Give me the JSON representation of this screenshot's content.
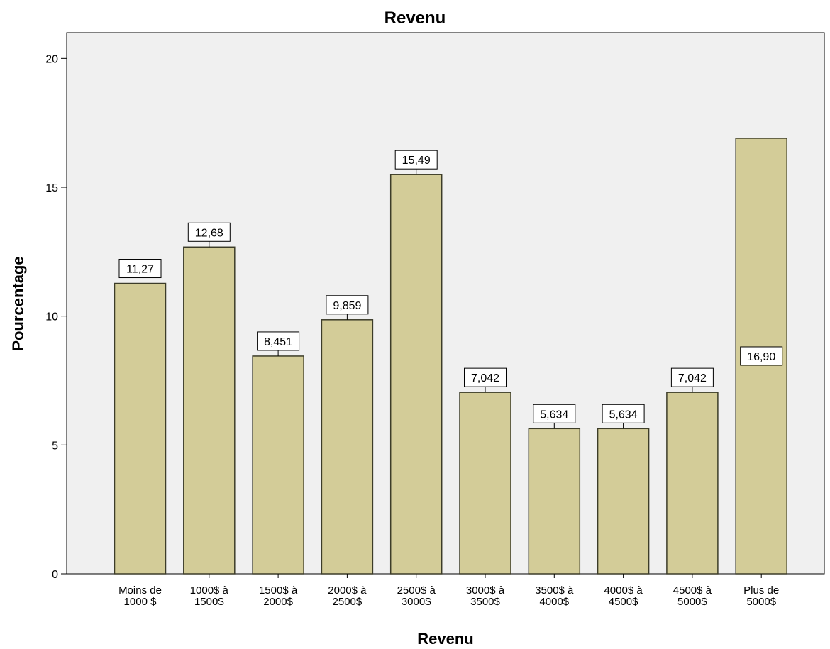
{
  "chart_data": {
    "type": "bar",
    "title": "Revenu",
    "xlabel": "Revenu",
    "ylabel": "Pourcentage",
    "ylim": [
      0,
      21
    ],
    "yticks": [
      0,
      5,
      10,
      15,
      20
    ],
    "grid": false,
    "categories": [
      [
        "Moins de",
        "1000 $"
      ],
      [
        "1000$ à",
        "1500$"
      ],
      [
        "1500$ à",
        "2000$"
      ],
      [
        "2000$ à",
        "2500$"
      ],
      [
        "2500$ à",
        "3000$"
      ],
      [
        "3000$ à",
        "3500$"
      ],
      [
        "3500$ à",
        "4000$"
      ],
      [
        "4000$ à",
        "4500$"
      ],
      [
        "4500$ à",
        "5000$"
      ],
      [
        "Plus de",
        "5000$"
      ]
    ],
    "values": [
      11.27,
      12.68,
      8.451,
      9.859,
      15.49,
      7.042,
      5.634,
      5.634,
      7.042,
      16.9
    ],
    "data_labels": [
      "11,27",
      "12,68",
      "8,451",
      "9,859",
      "15,49",
      "7,042",
      "5,634",
      "5,634",
      "7,042",
      "16,90"
    ],
    "colors": {
      "bar_fill": "#d3cc98",
      "bar_stroke": "#3c3c28",
      "plot_background": "#f0f0f0"
    }
  }
}
